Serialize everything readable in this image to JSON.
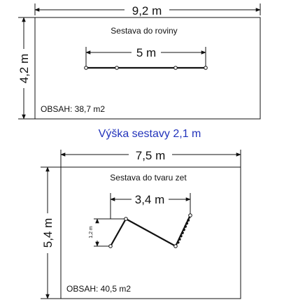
{
  "plan1": {
    "width_label": "9,2 m",
    "height_label": "4,2 m",
    "title": "Sestava do roviny",
    "inner_label": "5 m",
    "area": "OBSAH: 38,7 m2"
  },
  "middle_label": "Výška sestavy 2,1 m",
  "plan2": {
    "width_label": "7,5 m",
    "height_label": "5,4 m",
    "title": "Sestava do tvaru zet",
    "inner_label": "3,4 m",
    "small_label": "1,2 m",
    "area": "OBSAH: 40,5 m2"
  },
  "colors": {
    "line": "#111111",
    "middle_text": "#2233bb",
    "background": "#ffffff"
  }
}
